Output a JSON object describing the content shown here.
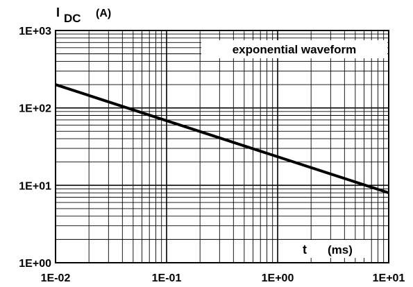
{
  "chart_data": {
    "type": "line",
    "xscale": "log",
    "yscale": "log",
    "xlim": [
      0.01,
      10
    ],
    "ylim": [
      1,
      1000
    ],
    "grid": true,
    "x_ticks": [
      "1E-02",
      "1E-01",
      "1E+00",
      "1E+01"
    ],
    "y_ticks": [
      "1E+00",
      "1E+01",
      "1E+02",
      "1E+03"
    ],
    "ylabel": {
      "main": "I",
      "sub": "DC",
      "unit": "(A)"
    },
    "xlabel": {
      "main": "t",
      "unit": "(ms)"
    },
    "annotation": "exponential waveform",
    "series": [
      {
        "x": [
          0.01,
          10
        ],
        "y": [
          200,
          8
        ]
      }
    ]
  }
}
